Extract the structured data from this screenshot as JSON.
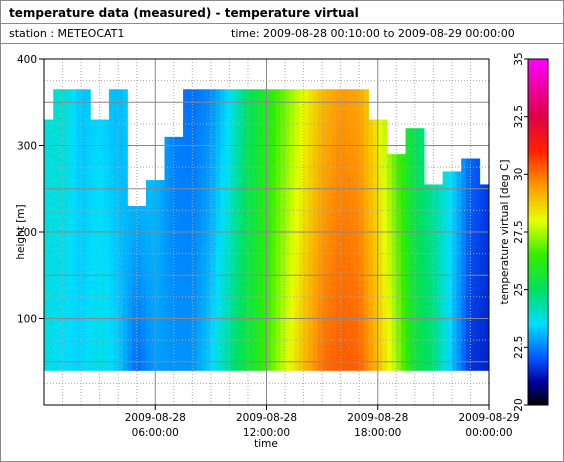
{
  "header": {
    "title": "temperature data (measured) - temperature virtual",
    "station": "station : METEOCAT1",
    "time_range": "time: 2009-08-28 00:10:00 to 2009-08-29 00:00:00"
  },
  "chart_data": {
    "type": "heatmap",
    "title": "temperature data (measured) - temperature virtual",
    "xlabel": "time",
    "ylabel": "height [m]",
    "colorbar_label": "temperature virtual [deg C]",
    "xlim": [
      "2009-08-28 00:00:00",
      "2009-08-29 00:00:00"
    ],
    "ylim": [
      0,
      400
    ],
    "zlim": [
      20,
      35
    ],
    "x_ticks": [
      {
        "x": "2009-08-28 06:00:00",
        "date": "2009-08-28",
        "time": "06:00:00"
      },
      {
        "x": "2009-08-28 12:00:00",
        "date": "2009-08-28",
        "time": "12:00:00"
      },
      {
        "x": "2009-08-28 18:00:00",
        "date": "2009-08-28",
        "time": "18:00:00"
      },
      {
        "x": "2009-08-29 00:00:00",
        "date": "2009-08-29",
        "time": "00:00:00"
      }
    ],
    "y_ticks": [
      100,
      200,
      300,
      400
    ],
    "colorbar_ticks": [
      "35",
      "32.5",
      "30",
      "27.5",
      "25",
      "22.5",
      "20"
    ],
    "height_min": 40,
    "grid": true,
    "colormap": [
      {
        "t": 20,
        "color": "#000000"
      },
      {
        "t": 21,
        "color": "#0000a0"
      },
      {
        "t": 22,
        "color": "#0055ff"
      },
      {
        "t": 23.5,
        "color": "#00ddff"
      },
      {
        "t": 25,
        "color": "#00e060"
      },
      {
        "t": 26.5,
        "color": "#33ee00"
      },
      {
        "t": 28,
        "color": "#e8ff00"
      },
      {
        "t": 29.5,
        "color": "#ff9900"
      },
      {
        "t": 31,
        "color": "#ff2200"
      },
      {
        "t": 32.5,
        "color": "#dd0044"
      },
      {
        "t": 35,
        "color": "#ff00ff"
      }
    ],
    "series": [
      {
        "time": "00:00",
        "top": 330,
        "t_low": 23.8,
        "t_high": 23.8
      },
      {
        "time": "01:00",
        "top": 365,
        "t_low": 23.5,
        "t_high": 24.0
      },
      {
        "time": "02:00",
        "top": 365,
        "t_low": 23.4,
        "t_high": 23.2
      },
      {
        "time": "03:00",
        "top": 330,
        "t_low": 23.8,
        "t_high": 23.4
      },
      {
        "time": "04:00",
        "top": 365,
        "t_low": 23.3,
        "t_high": 23.1
      },
      {
        "time": "05:00",
        "top": 230,
        "t_low": 22.2,
        "t_high": 23.6
      },
      {
        "time": "06:00",
        "top": 260,
        "t_low": 22.8,
        "t_high": 23.3
      },
      {
        "time": "07:00",
        "top": 310,
        "t_low": 22.7,
        "t_high": 22.4
      },
      {
        "time": "08:00",
        "top": 365,
        "t_low": 22.7,
        "t_high": 22.3
      },
      {
        "time": "09:00",
        "top": 365,
        "t_low": 23.4,
        "t_high": 22.6
      },
      {
        "time": "10:00",
        "top": 365,
        "t_low": 24.6,
        "t_high": 23.5
      },
      {
        "time": "11:00",
        "top": 365,
        "t_low": 25.6,
        "t_high": 25.0
      },
      {
        "time": "12:00",
        "top": 365,
        "t_low": 26.6,
        "t_high": 26.0
      },
      {
        "time": "13:00",
        "top": 365,
        "t_low": 27.8,
        "t_high": 27.0
      },
      {
        "time": "14:00",
        "top": 365,
        "t_low": 29.0,
        "t_high": 28.0
      },
      {
        "time": "15:00",
        "top": 365,
        "t_low": 30.0,
        "t_high": 29.0
      },
      {
        "time": "16:00",
        "top": 365,
        "t_low": 30.3,
        "t_high": 29.5
      },
      {
        "time": "17:00",
        "top": 365,
        "t_low": 30.2,
        "t_high": 29.3
      },
      {
        "time": "18:00",
        "top": 330,
        "t_low": 29.0,
        "t_high": 28.2
      },
      {
        "time": "19:00",
        "top": 290,
        "t_low": 27.5,
        "t_high": 26.5
      },
      {
        "time": "20:00",
        "top": 320,
        "t_low": 25.5,
        "t_high": 25.0
      },
      {
        "time": "21:00",
        "top": 255,
        "t_low": 24.8,
        "t_high": 24.2
      },
      {
        "time": "22:00",
        "top": 270,
        "t_low": 23.2,
        "t_high": 23.6
      },
      {
        "time": "23:00",
        "top": 285,
        "t_low": 21.6,
        "t_high": 22.4
      },
      {
        "time": "24:00",
        "top": 255,
        "t_low": 21.4,
        "t_high": 21.8
      }
    ]
  }
}
